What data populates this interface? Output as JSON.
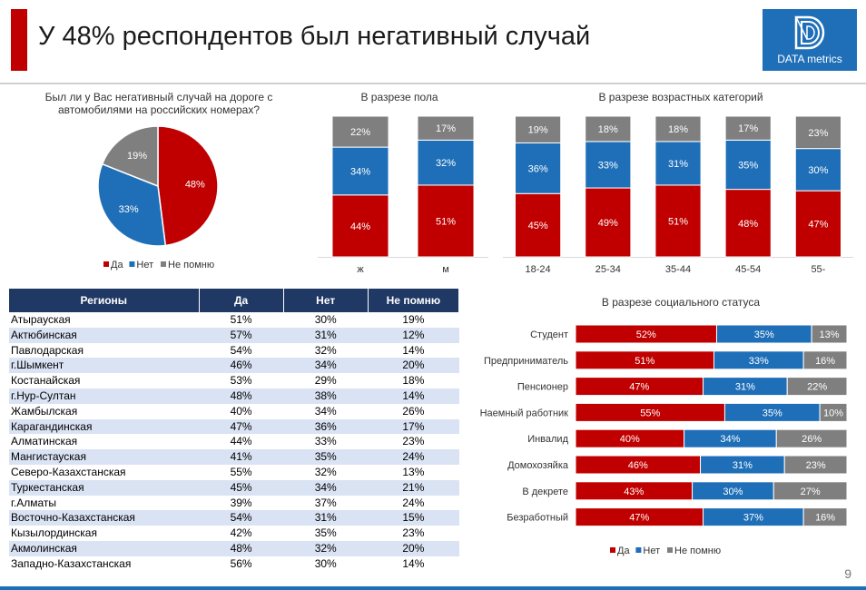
{
  "title": "У 48% респондентов был негативный случай",
  "logo": {
    "text": "DATA metrics",
    "color": "#1f6fb8"
  },
  "page_number": "9",
  "colors": {
    "yes": "#c00000",
    "no": "#1f6fb8",
    "dontremember": "#7f7f7f"
  },
  "legend": [
    "Да",
    "Нет",
    "Не помню"
  ],
  "chart_data": [
    {
      "type": "pie",
      "title": "Был ли у Вас негативный случай на дороге с автомобилями на российских номерах?",
      "labels": [
        "Да",
        "Нет",
        "Не помню"
      ],
      "values": [
        48,
        33,
        19
      ]
    },
    {
      "type": "bar",
      "stacked": true,
      "title": "В разрезе пола",
      "categories": [
        "ж",
        "м"
      ],
      "series": [
        {
          "name": "Да",
          "values": [
            44,
            51
          ]
        },
        {
          "name": "Нет",
          "values": [
            34,
            32
          ]
        },
        {
          "name": "Не помню",
          "values": [
            22,
            17
          ]
        }
      ]
    },
    {
      "type": "bar",
      "stacked": true,
      "title": "В разрезе возрастных категорий",
      "categories": [
        "18-24",
        "25-34",
        "35-44",
        "45-54",
        "55-"
      ],
      "series": [
        {
          "name": "Да",
          "values": [
            45,
            49,
            51,
            48,
            47
          ]
        },
        {
          "name": "Нет",
          "values": [
            36,
            33,
            31,
            35,
            30
          ]
        },
        {
          "name": "Не помню",
          "values": [
            19,
            18,
            18,
            17,
            23
          ]
        }
      ]
    },
    {
      "type": "table",
      "headers": [
        "Регионы",
        "Да",
        "Нет",
        "Не помню"
      ],
      "rows": [
        [
          "Атырауская",
          "51%",
          "30%",
          "19%"
        ],
        [
          "Актюбинская",
          "57%",
          "31%",
          "12%"
        ],
        [
          "Павлодарская",
          "54%",
          "32%",
          "14%"
        ],
        [
          "г.Шымкент",
          "46%",
          "34%",
          "20%"
        ],
        [
          "Костанайская",
          "53%",
          "29%",
          "18%"
        ],
        [
          "г.Нур-Султан",
          "48%",
          "38%",
          "14%"
        ],
        [
          "Жамбылская",
          "40%",
          "34%",
          "26%"
        ],
        [
          "Карагандинская",
          "47%",
          "36%",
          "17%"
        ],
        [
          "Алматинская",
          "44%",
          "33%",
          "23%"
        ],
        [
          "Мангистауская",
          "41%",
          "35%",
          "24%"
        ],
        [
          "Северо-Казахстанская",
          "55%",
          "32%",
          "13%"
        ],
        [
          "Туркестанская",
          "45%",
          "34%",
          "21%"
        ],
        [
          "г.Алматы",
          "39%",
          "37%",
          "24%"
        ],
        [
          "Восточно-Казахстанская",
          "54%",
          "31%",
          "15%"
        ],
        [
          "Кызылординская",
          "42%",
          "35%",
          "23%"
        ],
        [
          "Акмолинская",
          "48%",
          "32%",
          "20%"
        ],
        [
          "Западно-Казахстанская",
          "56%",
          "30%",
          "14%"
        ]
      ]
    },
    {
      "type": "bar",
      "stacked": true,
      "horizontal": true,
      "title": "В разрезе социального статуса",
      "categories": [
        "Студент",
        "Предприниматель",
        "Пенсионер",
        "Наемный работник",
        "Инвалид",
        "Домохозяйка",
        "В декрете",
        "Безработный"
      ],
      "series": [
        {
          "name": "Да",
          "values": [
            52,
            51,
            47,
            55,
            40,
            46,
            43,
            47
          ]
        },
        {
          "name": "Нет",
          "values": [
            35,
            33,
            31,
            35,
            34,
            31,
            30,
            37
          ]
        },
        {
          "name": "Не помню",
          "values": [
            13,
            16,
            22,
            10,
            26,
            23,
            27,
            16
          ]
        }
      ]
    }
  ]
}
